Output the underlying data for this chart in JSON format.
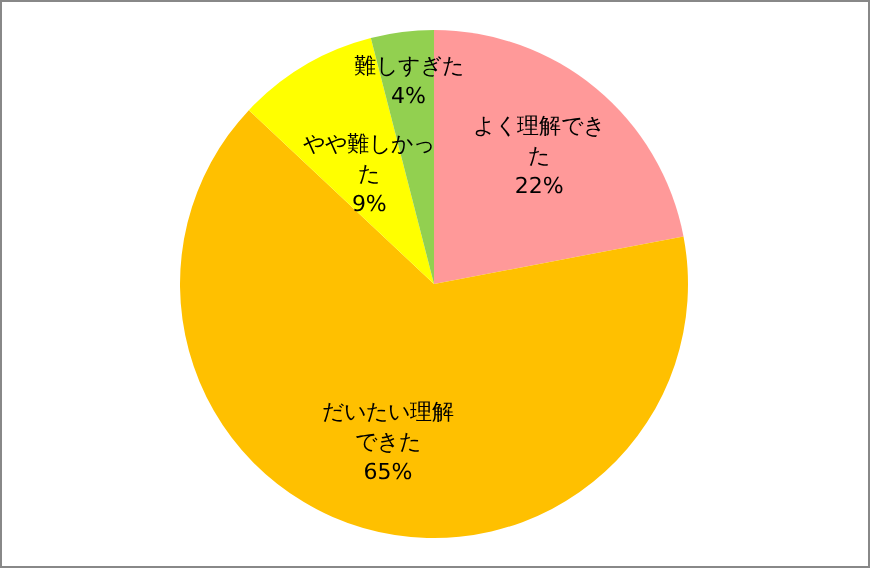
{
  "chart_data": {
    "type": "pie",
    "categories": [
      "よく理解できた",
      "だいたい理解できた",
      "やや難しかった",
      "難しすぎた"
    ],
    "values": [
      22,
      65,
      9,
      4
    ],
    "value_labels": [
      "22%",
      "65%",
      "9%",
      "4%"
    ],
    "colors": [
      "#ff9999",
      "#ffc000",
      "#ffff00",
      "#92d050"
    ],
    "legend": false
  }
}
